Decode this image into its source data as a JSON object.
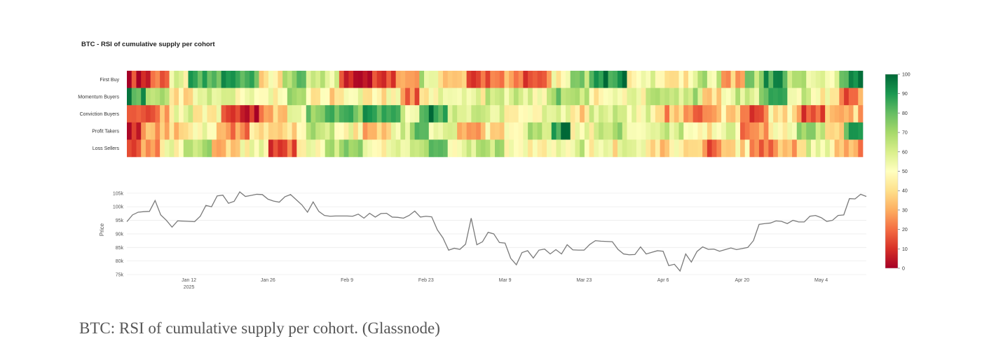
{
  "chart_data": {
    "type": "heatmap",
    "title": "BTC - RSI of cumulative supply per cohort",
    "cohorts": [
      "First Buy",
      "Momentum Buyers",
      "Conviction Buyers",
      "Profit Takers",
      "Loss Sellers"
    ],
    "colorbar": {
      "min": 0,
      "max": 100,
      "ticks": [
        "100",
        "90",
        "80",
        "70",
        "60",
        "50",
        "40",
        "30",
        "20",
        "10",
        "0"
      ]
    },
    "rsi_ranges": [
      {
        "label": "First Buy",
        "segments": [
          [
            0,
            5,
            8
          ],
          [
            5,
            9,
            22
          ],
          [
            9,
            13,
            52
          ],
          [
            13,
            20,
            80
          ],
          [
            20,
            28,
            88
          ],
          [
            28,
            33,
            42
          ],
          [
            33,
            38,
            72
          ],
          [
            38,
            45,
            58
          ],
          [
            45,
            57,
            10
          ],
          [
            57,
            62,
            35
          ],
          [
            62,
            66,
            65
          ],
          [
            66,
            72,
            38
          ],
          [
            72,
            78,
            20
          ],
          [
            78,
            84,
            30
          ],
          [
            84,
            90,
            18
          ],
          [
            90,
            94,
            48
          ],
          [
            94,
            98,
            70
          ],
          [
            98,
            106,
            92
          ],
          [
            106,
            110,
            45
          ],
          [
            110,
            114,
            58
          ],
          [
            114,
            120,
            40
          ],
          [
            120,
            126,
            62
          ],
          [
            126,
            131,
            30
          ],
          [
            131,
            135,
            72
          ],
          [
            135,
            140,
            88
          ],
          [
            140,
            145,
            62
          ],
          [
            145,
            151,
            50
          ],
          [
            151,
            156,
            90
          ]
        ]
      },
      {
        "label": "Momentum Buyers",
        "segments": [
          [
            0,
            4,
            88
          ],
          [
            4,
            9,
            72
          ],
          [
            9,
            14,
            42
          ],
          [
            14,
            20,
            60
          ],
          [
            20,
            28,
            55
          ],
          [
            28,
            34,
            48
          ],
          [
            34,
            38,
            68
          ],
          [
            38,
            45,
            42
          ],
          [
            45,
            50,
            52
          ],
          [
            50,
            58,
            45
          ],
          [
            58,
            62,
            20
          ],
          [
            62,
            70,
            50
          ],
          [
            70,
            76,
            52
          ],
          [
            76,
            84,
            58
          ],
          [
            84,
            90,
            55
          ],
          [
            90,
            94,
            72
          ],
          [
            94,
            98,
            62
          ],
          [
            98,
            105,
            46
          ],
          [
            105,
            110,
            52
          ],
          [
            110,
            116,
            58
          ],
          [
            116,
            122,
            64
          ],
          [
            122,
            128,
            44
          ],
          [
            128,
            134,
            62
          ],
          [
            134,
            140,
            82
          ],
          [
            140,
            145,
            56
          ],
          [
            145,
            151,
            48
          ],
          [
            151,
            156,
            22
          ]
        ]
      },
      {
        "label": "Conviction Buyers",
        "segments": [
          [
            0,
            5,
            10
          ],
          [
            5,
            9,
            25
          ],
          [
            9,
            14,
            55
          ],
          [
            14,
            20,
            45
          ],
          [
            20,
            28,
            8
          ],
          [
            28,
            34,
            32
          ],
          [
            34,
            38,
            55
          ],
          [
            38,
            45,
            78
          ],
          [
            45,
            50,
            80
          ],
          [
            50,
            58,
            85
          ],
          [
            58,
            62,
            55
          ],
          [
            62,
            68,
            90
          ],
          [
            68,
            73,
            55
          ],
          [
            73,
            80,
            62
          ],
          [
            80,
            88,
            48
          ],
          [
            88,
            94,
            58
          ],
          [
            94,
            98,
            40
          ],
          [
            98,
            106,
            62
          ],
          [
            106,
            112,
            55
          ],
          [
            112,
            118,
            30
          ],
          [
            118,
            124,
            22
          ],
          [
            124,
            130,
            38
          ],
          [
            130,
            136,
            18
          ],
          [
            136,
            142,
            45
          ],
          [
            142,
            148,
            18
          ],
          [
            148,
            156,
            35
          ]
        ]
      },
      {
        "label": "Profit Takers",
        "segments": [
          [
            0,
            3,
            8
          ],
          [
            3,
            7,
            26
          ],
          [
            7,
            13,
            38
          ],
          [
            13,
            19,
            50
          ],
          [
            19,
            26,
            22
          ],
          [
            26,
            32,
            44
          ],
          [
            32,
            38,
            40
          ],
          [
            38,
            44,
            64
          ],
          [
            44,
            50,
            48
          ],
          [
            50,
            56,
            30
          ],
          [
            56,
            60,
            58
          ],
          [
            60,
            64,
            78
          ],
          [
            64,
            70,
            50
          ],
          [
            70,
            76,
            30
          ],
          [
            76,
            84,
            44
          ],
          [
            84,
            90,
            62
          ],
          [
            90,
            94,
            92
          ],
          [
            94,
            100,
            52
          ],
          [
            100,
            106,
            70
          ],
          [
            106,
            112,
            50
          ],
          [
            112,
            118,
            64
          ],
          [
            118,
            124,
            42
          ],
          [
            124,
            130,
            56
          ],
          [
            130,
            136,
            28
          ],
          [
            136,
            142,
            48
          ],
          [
            142,
            148,
            70
          ],
          [
            148,
            152,
            38
          ],
          [
            152,
            156,
            85
          ]
        ]
      },
      {
        "label": "Loss Sellers",
        "segments": [
          [
            0,
            3,
            8
          ],
          [
            3,
            7,
            22
          ],
          [
            7,
            12,
            52
          ],
          [
            12,
            18,
            64
          ],
          [
            18,
            24,
            38
          ],
          [
            24,
            30,
            52
          ],
          [
            30,
            36,
            18
          ],
          [
            36,
            42,
            52
          ],
          [
            42,
            50,
            70
          ],
          [
            50,
            56,
            46
          ],
          [
            56,
            62,
            58
          ],
          [
            62,
            68,
            72
          ],
          [
            68,
            74,
            54
          ],
          [
            74,
            80,
            62
          ],
          [
            80,
            86,
            52
          ],
          [
            86,
            92,
            48
          ],
          [
            92,
            98,
            58
          ],
          [
            98,
            104,
            46
          ],
          [
            104,
            110,
            62
          ],
          [
            110,
            116,
            40
          ],
          [
            116,
            122,
            48
          ],
          [
            122,
            126,
            22
          ],
          [
            126,
            132,
            44
          ],
          [
            132,
            138,
            16
          ],
          [
            138,
            144,
            30
          ],
          [
            144,
            150,
            54
          ],
          [
            150,
            156,
            28
          ]
        ]
      }
    ],
    "price": {
      "ylabel": "Price",
      "ylim": [
        75000,
        106000
      ],
      "y_ticks": [
        {
          "value": 105000,
          "label": "105k"
        },
        {
          "value": 100000,
          "label": "100k"
        },
        {
          "value": 95000,
          "label": "95k"
        },
        {
          "value": 90000,
          "label": "90k"
        },
        {
          "value": 85000,
          "label": "85k"
        },
        {
          "value": 80000,
          "label": "80k"
        },
        {
          "value": 75000,
          "label": "75k"
        }
      ],
      "x_ticks": [
        {
          "day": 11,
          "label": "Jan 12",
          "sub": "2025"
        },
        {
          "day": 25,
          "label": "Jan 26",
          "sub": ""
        },
        {
          "day": 39,
          "label": "Feb 9",
          "sub": ""
        },
        {
          "day": 53,
          "label": "Feb 23",
          "sub": ""
        },
        {
          "day": 67,
          "label": "Mar 9",
          "sub": ""
        },
        {
          "day": 81,
          "label": "Mar 23",
          "sub": ""
        },
        {
          "day": 95,
          "label": "Apr 6",
          "sub": ""
        },
        {
          "day": 109,
          "label": "Apr 20",
          "sub": ""
        },
        {
          "day": 123,
          "label": "May 4",
          "sub": ""
        }
      ],
      "x_range": [
        0,
        131
      ],
      "values": [
        [
          0,
          94500
        ],
        [
          1,
          97000
        ],
        [
          2,
          98000
        ],
        [
          3,
          98200
        ],
        [
          4,
          98300
        ],
        [
          5,
          102300
        ],
        [
          6,
          97000
        ],
        [
          7,
          95000
        ],
        [
          8,
          92500
        ],
        [
          9,
          94800
        ],
        [
          10,
          94700
        ],
        [
          11,
          94600
        ],
        [
          12,
          94500
        ],
        [
          13,
          96500
        ],
        [
          14,
          100500
        ],
        [
          15,
          100000
        ],
        [
          16,
          104000
        ],
        [
          17,
          104300
        ],
        [
          18,
          101300
        ],
        [
          19,
          102000
        ],
        [
          20,
          105500
        ],
        [
          21,
          103800
        ],
        [
          22,
          104200
        ],
        [
          23,
          104600
        ],
        [
          24,
          104500
        ],
        [
          25,
          102800
        ],
        [
          26,
          102100
        ],
        [
          27,
          101700
        ],
        [
          28,
          103700
        ],
        [
          29,
          104500
        ],
        [
          30,
          102600
        ],
        [
          31,
          100700
        ],
        [
          32,
          98000
        ],
        [
          33,
          101800
        ],
        [
          34,
          98300
        ],
        [
          35,
          96800
        ],
        [
          36,
          96500
        ],
        [
          37,
          96600
        ],
        [
          38,
          96600
        ],
        [
          39,
          96600
        ],
        [
          40,
          96500
        ],
        [
          41,
          97300
        ],
        [
          42,
          95800
        ],
        [
          43,
          97600
        ],
        [
          44,
          96200
        ],
        [
          45,
          97500
        ],
        [
          46,
          97600
        ],
        [
          47,
          96200
        ],
        [
          48,
          96100
        ],
        [
          49,
          95800
        ],
        [
          50,
          96800
        ],
        [
          51,
          98400
        ],
        [
          52,
          96200
        ],
        [
          53,
          96500
        ],
        [
          54,
          96300
        ],
        [
          55,
          91500
        ],
        [
          56,
          88500
        ],
        [
          57,
          84000
        ],
        [
          58,
          84700
        ],
        [
          59,
          84300
        ],
        [
          60,
          86200
        ],
        [
          61,
          95800
        ],
        [
          62,
          86000
        ],
        [
          63,
          87100
        ],
        [
          64,
          90600
        ],
        [
          65,
          90000
        ],
        [
          66,
          86800
        ],
        [
          67,
          86600
        ],
        [
          68,
          81000
        ],
        [
          69,
          78600
        ],
        [
          70,
          83100
        ],
        [
          71,
          83800
        ],
        [
          72,
          81100
        ],
        [
          73,
          84000
        ],
        [
          74,
          84400
        ],
        [
          75,
          82600
        ],
        [
          76,
          84200
        ],
        [
          77,
          82600
        ],
        [
          78,
          86000
        ],
        [
          79,
          84100
        ],
        [
          80,
          84000
        ],
        [
          81,
          84000
        ],
        [
          82,
          86100
        ],
        [
          83,
          87500
        ],
        [
          84,
          87300
        ],
        [
          85,
          87200
        ],
        [
          86,
          87100
        ],
        [
          87,
          84300
        ],
        [
          88,
          82600
        ],
        [
          89,
          82300
        ],
        [
          90,
          82400
        ],
        [
          91,
          85200
        ],
        [
          92,
          82600
        ],
        [
          93,
          83200
        ],
        [
          94,
          83800
        ],
        [
          95,
          83600
        ],
        [
          96,
          78300
        ],
        [
          97,
          78800
        ],
        [
          98,
          76300
        ],
        [
          99,
          82600
        ],
        [
          100,
          79600
        ],
        [
          101,
          83500
        ],
        [
          102,
          85200
        ],
        [
          103,
          84300
        ],
        [
          104,
          84400
        ],
        [
          105,
          83600
        ],
        [
          106,
          84200
        ],
        [
          107,
          84800
        ],
        [
          108,
          84200
        ],
        [
          109,
          84600
        ],
        [
          110,
          85000
        ],
        [
          111,
          87500
        ],
        [
          112,
          93500
        ],
        [
          113,
          93800
        ],
        [
          114,
          94000
        ],
        [
          115,
          94800
        ],
        [
          116,
          94600
        ],
        [
          117,
          93800
        ],
        [
          118,
          95000
        ],
        [
          119,
          94400
        ],
        [
          120,
          94400
        ],
        [
          121,
          96500
        ],
        [
          122,
          96800
        ],
        [
          123,
          96000
        ],
        [
          124,
          94600
        ],
        [
          125,
          95000
        ],
        [
          126,
          96800
        ],
        [
          127,
          97000
        ],
        [
          128,
          103000
        ],
        [
          129,
          102900
        ],
        [
          130,
          104600
        ],
        [
          131,
          103800
        ]
      ]
    }
  },
  "caption": "BTC: RSI of cumulative supply per cohort. (Glassnode)"
}
